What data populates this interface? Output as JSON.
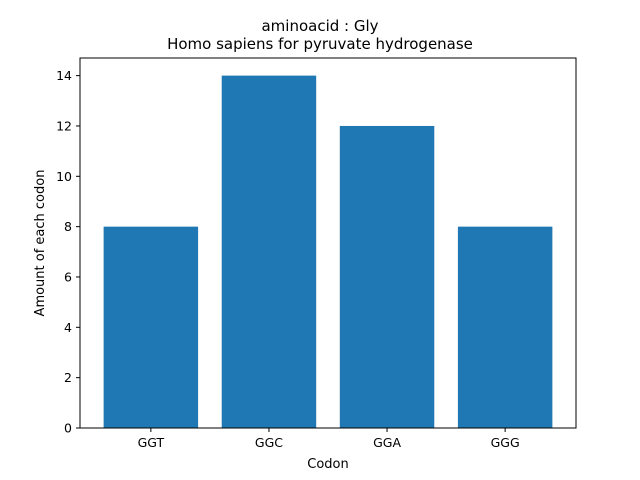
{
  "chart_data": {
    "type": "bar",
    "title": "aminoacid : Gly",
    "subtitle": "Homo sapiens for pyruvate hydrogenase",
    "xlabel": "Codon",
    "ylabel": "Amount of each codon",
    "categories": [
      "GGT",
      "GGC",
      "GGA",
      "GGG"
    ],
    "values": [
      8,
      14,
      12,
      8
    ],
    "ylim": [
      0,
      14.7
    ],
    "yticks": [
      0,
      2,
      4,
      6,
      8,
      10,
      12,
      14
    ],
    "bar_color": "#1f77b4",
    "grid": false,
    "legend": "none"
  }
}
